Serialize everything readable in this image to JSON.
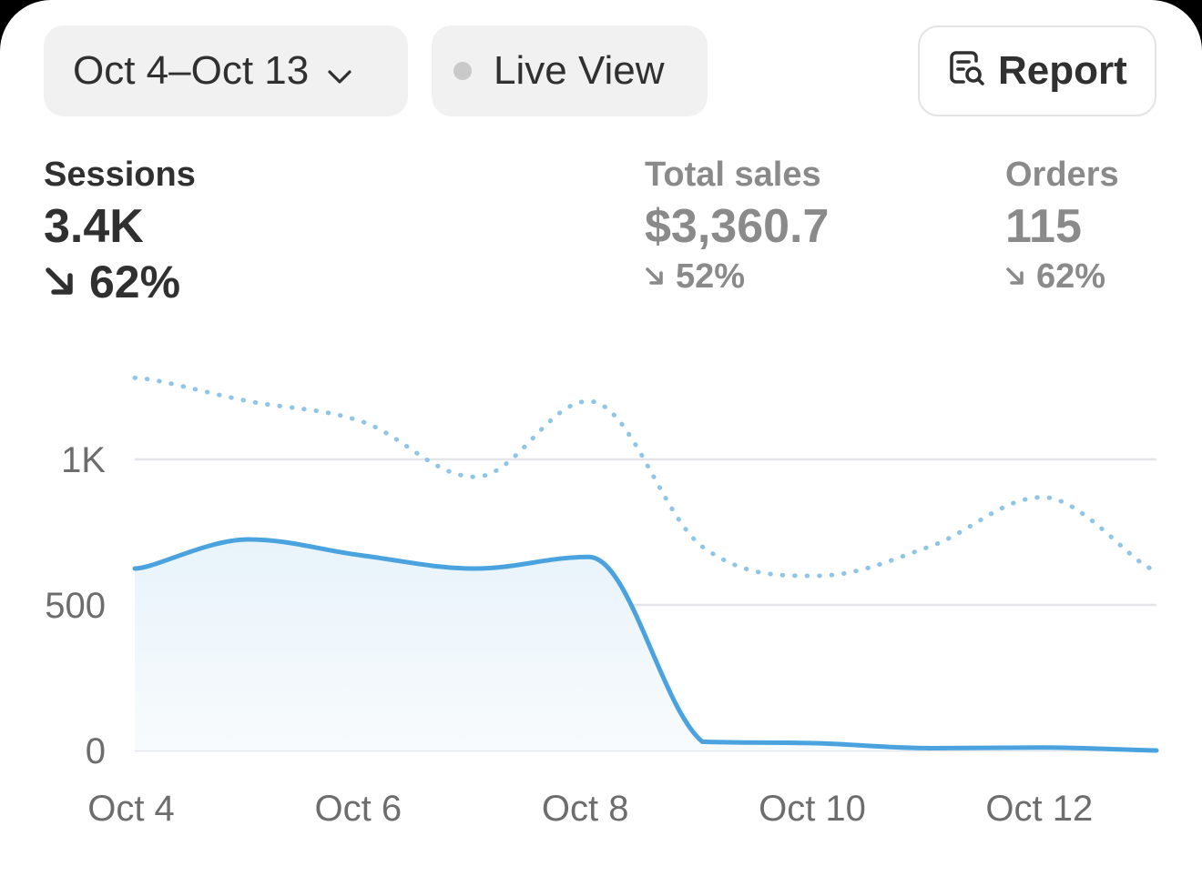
{
  "filters": {
    "date_range": "Oct 4–Oct 13",
    "live_view": "Live View",
    "report": "Report"
  },
  "metrics": {
    "sessions": {
      "label": "Sessions",
      "value": "3.4K",
      "delta": "62%",
      "direction": "down"
    },
    "total_sales": {
      "label": "Total sales",
      "value": "$3,360.7",
      "delta": "52%",
      "direction": "down"
    },
    "orders": {
      "label": "Orders",
      "value": "115",
      "delta": "62%",
      "direction": "down"
    }
  },
  "icons": [
    "chevron-down-icon",
    "live-dot-icon",
    "report-search-icon",
    "arrow-down-right-icon"
  ],
  "colors": {
    "current_series": "#4aa3df",
    "comparison_series": "#8fc5e6",
    "grid": "#e3e5e8",
    "muted_text": "#8a8a8a"
  },
  "chart_data": {
    "type": "area",
    "x": [
      "Oct 4",
      "Oct 5",
      "Oct 6",
      "Oct 7",
      "Oct 8",
      "Oct 9",
      "Oct 10",
      "Oct 11",
      "Oct 12",
      "Oct 13"
    ],
    "xticks": [
      "Oct 4",
      "Oct 6",
      "Oct 8",
      "Oct 10",
      "Oct 12"
    ],
    "yticks": [
      "0",
      "500",
      "1K"
    ],
    "ylim": [
      0,
      1300
    ],
    "grid": true,
    "series": [
      {
        "values": [
          625,
          725,
          670,
          625,
          665,
          30,
          25,
          8,
          10,
          0
        ],
        "style": "solid"
      },
      {
        "values": [
          1280,
          1200,
          1130,
          940,
          1200,
          700,
          600,
          700,
          870,
          620
        ],
        "style": "dotted"
      }
    ]
  }
}
